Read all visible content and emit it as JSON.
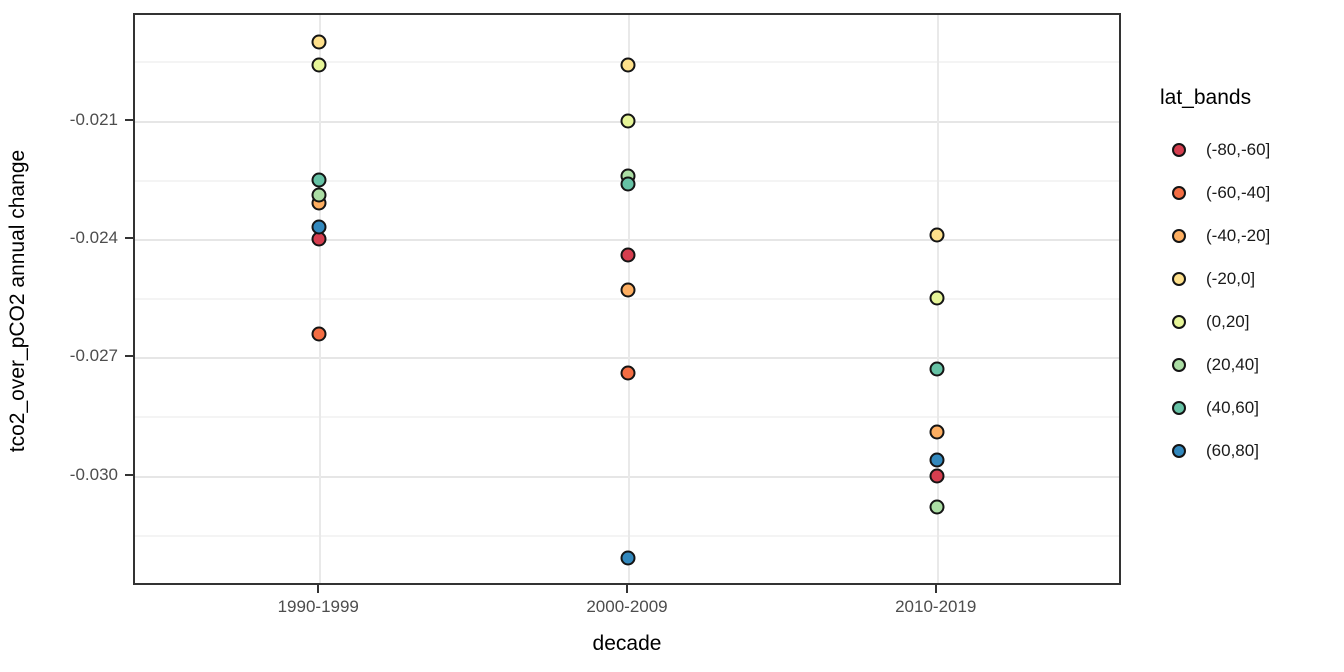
{
  "chart_data": {
    "type": "scatter",
    "title": "",
    "xlabel": "decade",
    "ylabel": "tco2_over_pCO2 annual change",
    "categories": [
      "1990-1999",
      "2000-2009",
      "2010-2019"
    ],
    "y_ticks": [
      -0.021,
      -0.024,
      -0.027,
      -0.03
    ],
    "y_tick_labels": [
      "-0.021",
      "-0.024",
      "-0.027",
      "-0.030"
    ],
    "y_minor_gridlines": [
      -0.0195,
      -0.0225,
      -0.0255,
      -0.0285,
      -0.0315
    ],
    "ylim": [
      -0.0328,
      -0.0183
    ],
    "grid": true,
    "legend_title": "lat_bands",
    "legend_position": "right",
    "series": [
      {
        "name": "(-80,-60]",
        "color": "#D53E4F",
        "values": [
          -0.024,
          -0.0244,
          -0.03
        ]
      },
      {
        "name": "(-60,-40]",
        "color": "#F46D43",
        "values": [
          -0.0264,
          -0.0274,
          null
        ]
      },
      {
        "name": "(-40,-20]",
        "color": "#FDAE61",
        "values": [
          -0.0231,
          -0.0253,
          -0.0289
        ]
      },
      {
        "name": "(-20,0]",
        "color": "#FEE08B",
        "values": [
          -0.019,
          -0.0196,
          -0.0239
        ]
      },
      {
        "name": "(0,20]",
        "color": "#E6F598",
        "values": [
          -0.0196,
          -0.021,
          -0.0255
        ]
      },
      {
        "name": "(20,40]",
        "color": "#ABDDA4",
        "values": [
          -0.0229,
          -0.0224,
          -0.0308
        ]
      },
      {
        "name": "(40,60]",
        "color": "#66C2A5",
        "values": [
          -0.0225,
          -0.0226,
          -0.0273
        ]
      },
      {
        "name": "(60,80]",
        "color": "#3288BD",
        "values": [
          -0.0237,
          -0.0321,
          -0.0296
        ]
      }
    ],
    "colors": {
      "panel_border": "#333333",
      "grid_major": "#e6e6e6",
      "grid_minor": "#f4f4f4",
      "tick_label": "#4d4d4d",
      "axis_title": "#000000",
      "point_stroke": "#141414"
    }
  }
}
